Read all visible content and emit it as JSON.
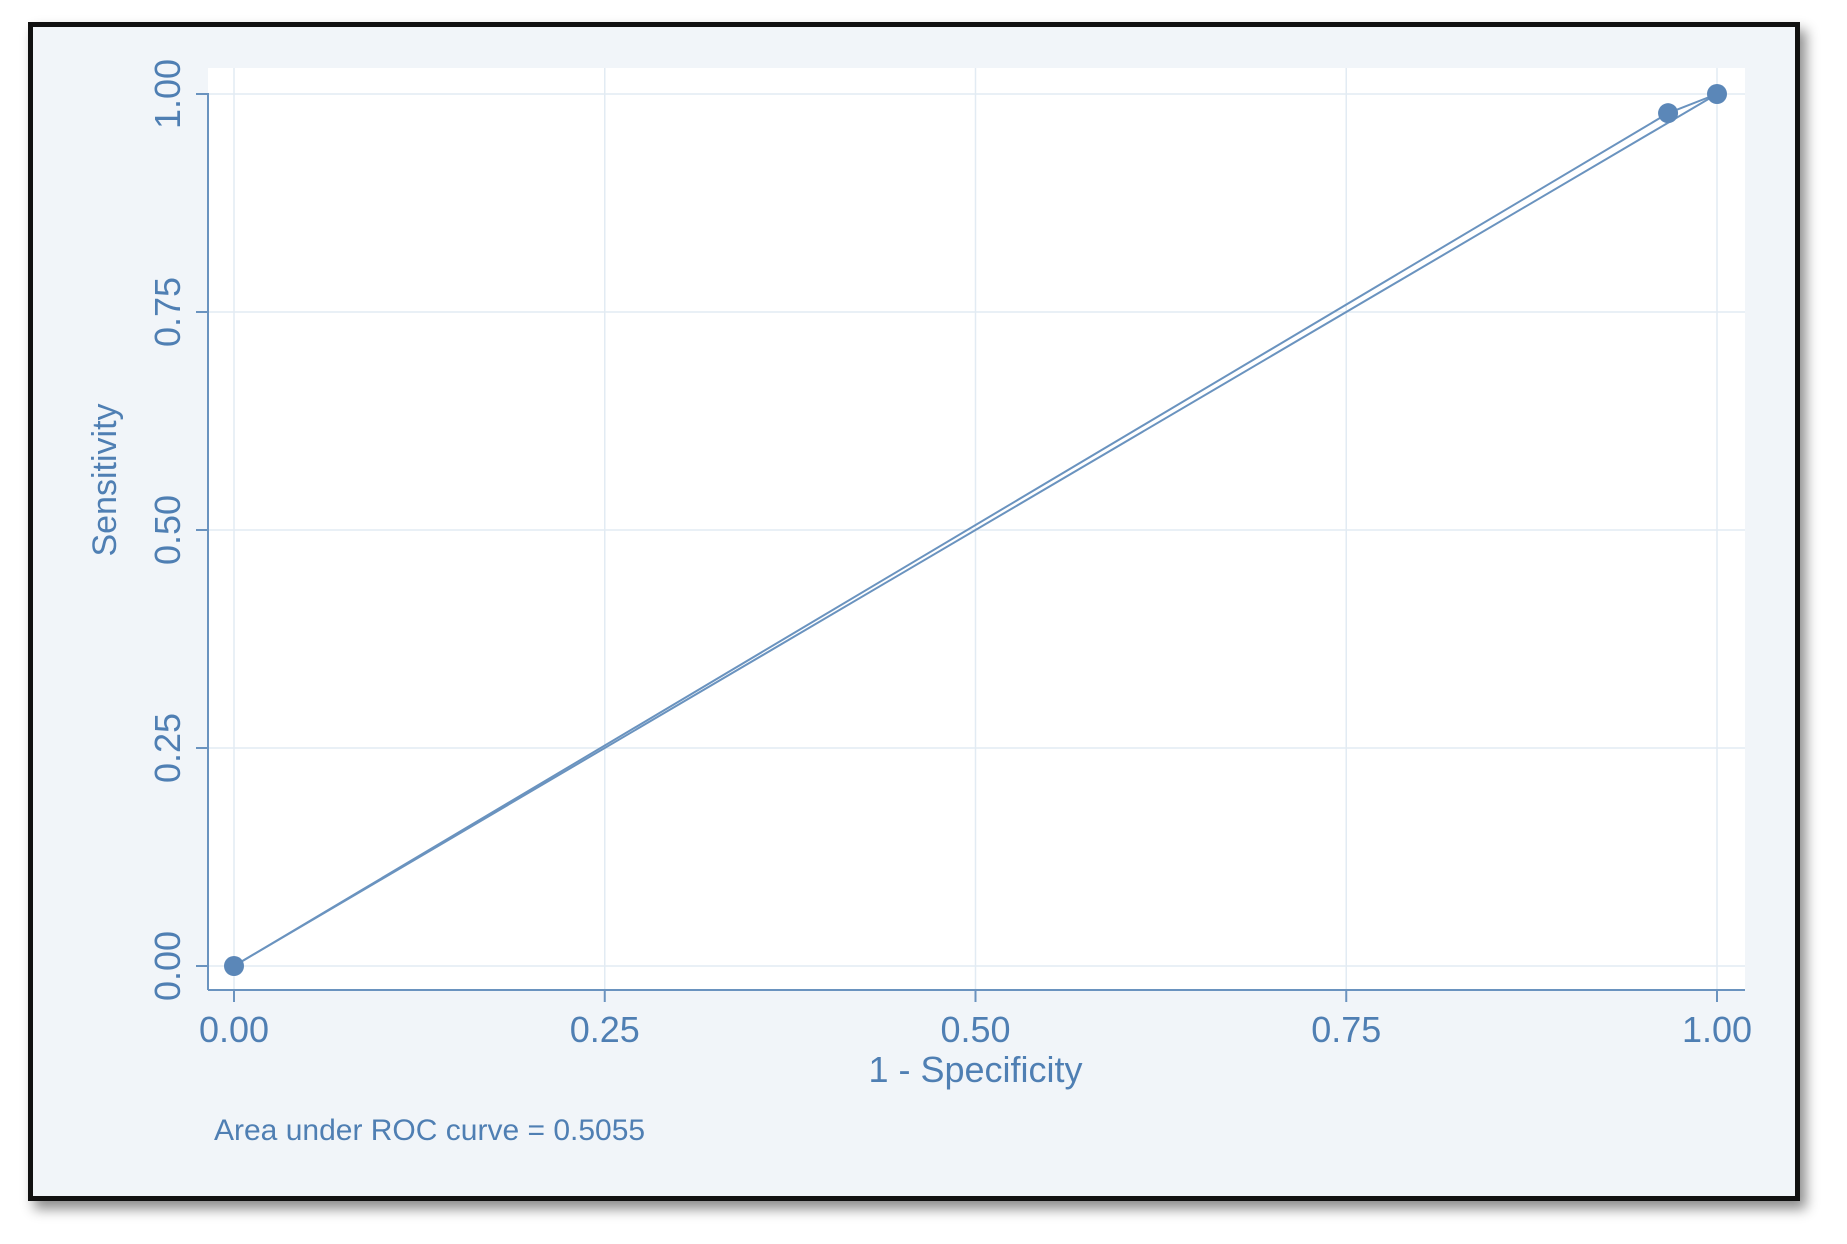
{
  "chart_data": {
    "type": "line",
    "title": "",
    "xlabel": "1 - Specificity",
    "ylabel": "Sensitivity",
    "xlim": [
      0,
      1
    ],
    "ylim": [
      0,
      1
    ],
    "xticks": [
      "0.00",
      "0.25",
      "0.50",
      "0.75",
      "1.00"
    ],
    "yticks": [
      "0.00",
      "0.25",
      "0.50",
      "0.75",
      "1.00"
    ],
    "grid": true,
    "series": [
      {
        "x": [
          0.0,
          0.967,
          1.0
        ],
        "y": [
          0.0,
          0.978,
          1.0
        ],
        "markers": true
      },
      {
        "x": [
          0.0,
          1.0
        ],
        "y": [
          0.0,
          1.0
        ],
        "markers": false
      }
    ],
    "annotation": "Area under ROC curve = 0.5055",
    "colors": {
      "line": "#6a93bf",
      "marker": "#5b87b8",
      "text": "#4f7fb3",
      "grid": "#e2ebf3",
      "plot_bg": "#ffffff",
      "outer_bg": "#f1f5f9"
    }
  }
}
